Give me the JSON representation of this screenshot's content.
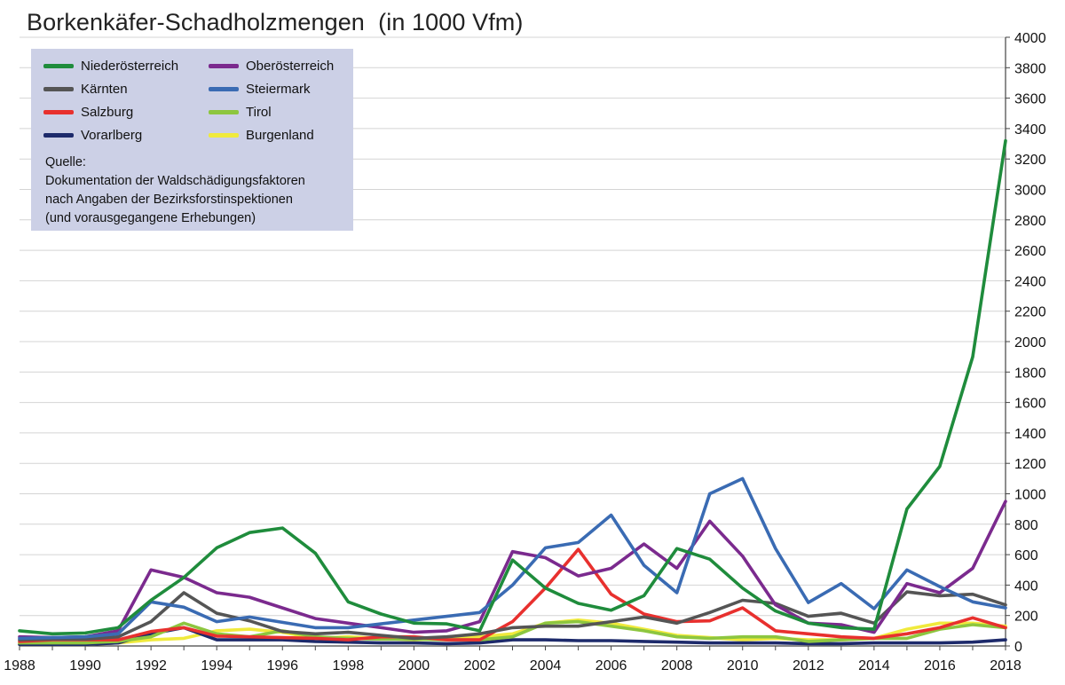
{
  "chart_data": {
    "type": "line",
    "title": "Borkenkäfer-Schadholzmengen  (in 1000 Vfm)",
    "xlabel": "",
    "ylabel": "",
    "xlim": [
      1988,
      2018
    ],
    "ylim": [
      0,
      4000
    ],
    "x_ticks": [
      "1988",
      "1990",
      "1992",
      "1994",
      "1996",
      "1998",
      "2000",
      "2002",
      "2004",
      "2006",
      "2008",
      "2010",
      "2012",
      "2014",
      "2016",
      "2018"
    ],
    "y_ticks": [
      "0",
      "200",
      "400",
      "600",
      "800",
      "1000",
      "1200",
      "1400",
      "1600",
      "1800",
      "2000",
      "2200",
      "2400",
      "2600",
      "2800",
      "3000",
      "3200",
      "3400",
      "3600",
      "3800",
      "4000"
    ],
    "grid": "horizontal",
    "legend_position": "top-left",
    "x": [
      1988,
      1989,
      1990,
      1991,
      1992,
      1993,
      1994,
      1995,
      1996,
      1997,
      1998,
      1999,
      2000,
      2001,
      2002,
      2003,
      2004,
      2005,
      2006,
      2007,
      2008,
      2009,
      2010,
      2011,
      2012,
      2013,
      2014,
      2015,
      2016,
      2017,
      2018
    ],
    "series": [
      {
        "name": "Niederösterreich",
        "color": "#1f8c3c",
        "values": [
          100,
          80,
          85,
          120,
          300,
          450,
          645,
          745,
          775,
          610,
          290,
          210,
          150,
          145,
          100,
          565,
          380,
          280,
          235,
          330,
          640,
          570,
          380,
          230,
          150,
          120,
          110,
          900,
          1180,
          1900,
          3320
        ]
      },
      {
        "name": "Oberösterreich",
        "color": "#7b2a8e",
        "values": [
          60,
          55,
          60,
          100,
          500,
          450,
          350,
          320,
          250,
          180,
          150,
          120,
          90,
          100,
          160,
          620,
          580,
          460,
          510,
          670,
          510,
          820,
          590,
          270,
          150,
          140,
          90,
          410,
          350,
          510,
          950
        ]
      },
      {
        "name": "Kärnten",
        "color": "#555555",
        "values": [
          40,
          45,
          45,
          60,
          160,
          350,
          215,
          165,
          95,
          80,
          90,
          70,
          50,
          60,
          80,
          120,
          130,
          130,
          160,
          190,
          150,
          220,
          300,
          280,
          195,
          215,
          150,
          355,
          330,
          340,
          270
        ]
      },
      {
        "name": "Steiermark",
        "color": "#3a6bb3",
        "values": [
          50,
          55,
          60,
          80,
          290,
          255,
          160,
          190,
          155,
          120,
          120,
          145,
          170,
          195,
          220,
          400,
          645,
          680,
          860,
          530,
          350,
          1000,
          1100,
          640,
          285,
          410,
          245,
          500,
          390,
          290,
          250
        ]
      },
      {
        "name": "Salzburg",
        "color": "#e8302e",
        "values": [
          30,
          40,
          40,
          40,
          95,
          120,
          65,
          60,
          55,
          50,
          40,
          60,
          60,
          40,
          40,
          160,
          380,
          635,
          340,
          210,
          160,
          165,
          250,
          100,
          80,
          60,
          50,
          80,
          120,
          185,
          120
        ]
      },
      {
        "name": "Tirol",
        "color": "#8dc63f",
        "values": [
          20,
          20,
          20,
          30,
          60,
          150,
          80,
          60,
          100,
          60,
          50,
          45,
          45,
          40,
          40,
          60,
          150,
          160,
          130,
          100,
          60,
          50,
          60,
          60,
          30,
          40,
          50,
          50,
          110,
          140,
          120
        ]
      },
      {
        "name": "Vorarlberg",
        "color": "#1d2a6b",
        "values": [
          10,
          10,
          10,
          20,
          80,
          120,
          40,
          40,
          40,
          30,
          25,
          20,
          20,
          15,
          20,
          40,
          40,
          35,
          35,
          30,
          25,
          20,
          20,
          20,
          15,
          15,
          20,
          20,
          20,
          25,
          40
        ]
      },
      {
        "name": "Burgenland",
        "color": "#f0ea3c",
        "values": [
          10,
          10,
          10,
          20,
          40,
          50,
          100,
          110,
          90,
          50,
          60,
          50,
          40,
          50,
          60,
          80,
          150,
          170,
          150,
          110,
          70,
          55,
          40,
          50,
          40,
          40,
          50,
          110,
          150,
          150,
          130
        ]
      }
    ]
  },
  "source_note": {
    "lines": [
      "Quelle:",
      "Dokumentation der Waldschädigungsfaktoren",
      "nach Angaben der Bezirksforstinspektionen",
      "(und vorausgegangene Erhebungen)"
    ]
  }
}
